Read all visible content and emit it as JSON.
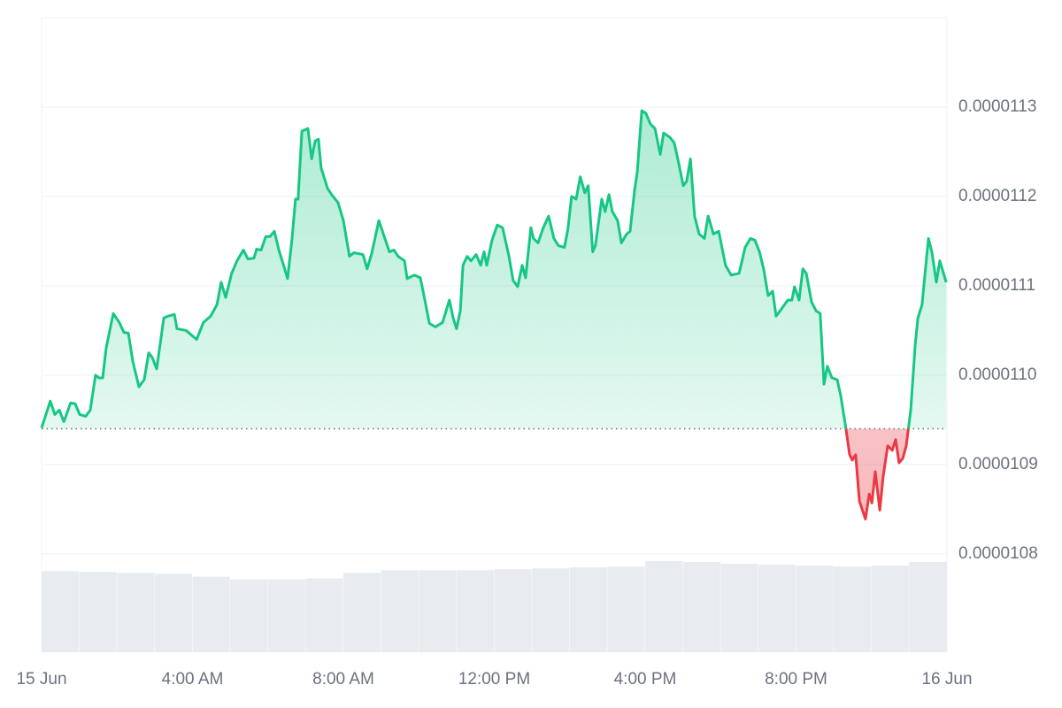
{
  "chart_data": {
    "type": "line",
    "x": [
      0,
      0.23,
      0.35,
      0.47,
      0.59,
      0.77,
      0.89,
      1.01,
      1.17,
      1.29,
      1.43,
      1.52,
      1.62,
      1.71,
      1.9,
      2.06,
      2.18,
      2.3,
      2.42,
      2.58,
      2.72,
      2.84,
      2.93,
      3.05,
      3.24,
      3.35,
      3.52,
      3.59,
      3.83,
      4.11,
      4.29,
      4.48,
      4.65,
      4.76,
      4.88,
      5.04,
      5.18,
      5.35,
      5.47,
      5.63,
      5.7,
      5.82,
      5.94,
      6.05,
      6.17,
      6.29,
      6.4,
      6.52,
      6.64,
      6.73,
      6.8,
      6.9,
      7.06,
      7.16,
      7.25,
      7.34,
      7.41,
      7.58,
      7.69,
      7.86,
      8.0,
      8.16,
      8.28,
      8.52,
      8.63,
      8.75,
      8.94,
      9.1,
      9.22,
      9.34,
      9.45,
      9.62,
      9.69,
      9.88,
      10.04,
      10.16,
      10.28,
      10.44,
      10.63,
      10.81,
      10.91,
      11.0,
      11.1,
      11.17,
      11.28,
      11.38,
      11.52,
      11.64,
      11.73,
      11.8,
      11.94,
      12.08,
      12.22,
      12.39,
      12.5,
      12.62,
      12.74,
      12.83,
      12.97,
      13.04,
      13.16,
      13.3,
      13.44,
      13.58,
      13.7,
      13.86,
      13.95,
      14.05,
      14.17,
      14.28,
      14.4,
      14.49,
      14.61,
      14.68,
      14.85,
      14.94,
      15.04,
      15.13,
      15.27,
      15.37,
      15.51,
      15.6,
      15.72,
      15.79,
      15.91,
      16.02,
      16.14,
      16.26,
      16.4,
      16.49,
      16.66,
      16.77,
      16.89,
      17.01,
      17.1,
      17.2,
      17.31,
      17.43,
      17.57,
      17.67,
      17.81,
      17.95,
      18.13,
      18.28,
      18.49,
      18.65,
      18.79,
      18.91,
      19.03,
      19.14,
      19.26,
      19.38,
      19.47,
      19.61,
      19.78,
      19.89,
      19.96,
      20.08,
      20.18,
      20.27,
      20.41,
      20.53,
      20.64,
      20.74,
      20.83,
      20.95,
      21.09,
      21.18,
      21.32,
      21.42,
      21.49,
      21.58,
      21.68,
      21.84,
      21.94,
      22.01,
      22.1,
      22.22,
      22.31,
      22.43,
      22.55,
      22.64,
      22.73,
      22.83,
      22.92,
      23.04,
      23.16,
      23.23,
      23.34,
      23.44,
      23.51,
      23.6,
      23.72,
      23.81,
      23.98
    ],
    "values": [
      1.0941e-05,
      1.0971e-05,
      1.0956e-05,
      1.0961e-05,
      1.0948e-05,
      1.0969e-05,
      1.0968e-05,
      1.0956e-05,
      1.0954e-05,
      1.0961e-05,
      1.1e-05,
      1.0997e-05,
      1.0997e-05,
      1.103e-05,
      1.1069e-05,
      1.1059e-05,
      1.1048e-05,
      1.1047e-05,
      1.1015e-05,
      1.0987e-05,
      1.0995e-05,
      1.1025e-05,
      1.102e-05,
      1.1007e-05,
      1.1064e-05,
      1.1066e-05,
      1.1068e-05,
      1.1052e-05,
      1.105e-05,
      1.104e-05,
      1.1059e-05,
      1.1066e-05,
      1.1079e-05,
      1.1104e-05,
      1.1087e-05,
      1.1114e-05,
      1.1128e-05,
      1.114e-05,
      1.113e-05,
      1.1131e-05,
      1.1141e-05,
      1.114e-05,
      1.1155e-05,
      1.1155e-05,
      1.1161e-05,
      1.114e-05,
      1.1125e-05,
      1.1108e-05,
      1.1153e-05,
      1.1197e-05,
      1.1197e-05,
      1.1273e-05,
      1.1276e-05,
      1.1242e-05,
      1.1262e-05,
      1.1264e-05,
      1.1232e-05,
      1.1209e-05,
      1.1202e-05,
      1.1193e-05,
      1.1173e-05,
      1.1133e-05,
      1.1137e-05,
      1.1135e-05,
      1.1119e-05,
      1.1136e-05,
      1.1173e-05,
      1.1153e-05,
      1.1138e-05,
      1.114e-05,
      1.1133e-05,
      1.1128e-05,
      1.1108e-05,
      1.1112e-05,
      1.1109e-05,
      1.1084e-05,
      1.1058e-05,
      1.1054e-05,
      1.1059e-05,
      1.1084e-05,
      1.1064e-05,
      1.1052e-05,
      1.1072e-05,
      1.1123e-05,
      1.1133e-05,
      1.1128e-05,
      1.1135e-05,
      1.1123e-05,
      1.1138e-05,
      1.1123e-05,
      1.1151e-05,
      1.1168e-05,
      1.1165e-05,
      1.1133e-05,
      1.1106e-05,
      1.1099e-05,
      1.1123e-05,
      1.1109e-05,
      1.1165e-05,
      1.1153e-05,
      1.1148e-05,
      1.1165e-05,
      1.1178e-05,
      1.1153e-05,
      1.1145e-05,
      1.1143e-05,
      1.1163e-05,
      1.12e-05,
      1.1197e-05,
      1.1222e-05,
      1.1204e-05,
      1.1212e-05,
      1.1138e-05,
      1.1145e-05,
      1.1197e-05,
      1.1183e-05,
      1.1202e-05,
      1.1183e-05,
      1.1173e-05,
      1.1148e-05,
      1.1158e-05,
      1.1161e-05,
      1.1207e-05,
      1.1227e-05,
      1.1296e-05,
      1.1293e-05,
      1.1281e-05,
      1.1276e-05,
      1.1247e-05,
      1.1271e-05,
      1.1266e-05,
      1.126e-05,
      1.1237e-05,
      1.1212e-05,
      1.1217e-05,
      1.1242e-05,
      1.1178e-05,
      1.1158e-05,
      1.1153e-05,
      1.1178e-05,
      1.1158e-05,
      1.1161e-05,
      1.1123e-05,
      1.1112e-05,
      1.1114e-05,
      1.1143e-05,
      1.1153e-05,
      1.1151e-05,
      1.1138e-05,
      1.1119e-05,
      1.1089e-05,
      1.1094e-05,
      1.1066e-05,
      1.1074e-05,
      1.1084e-05,
      1.1084e-05,
      1.1099e-05,
      1.1084e-05,
      1.1119e-05,
      1.1114e-05,
      1.1082e-05,
      1.1072e-05,
      1.1069e-05,
      1.099e-05,
      1.101e-05,
      1.0997e-05,
      1.0995e-05,
      1.0978e-05,
      1.0941e-05,
      1.0911e-05,
      1.0905e-05,
      1.0911e-05,
      1.0859e-05,
      1.0839e-05,
      1.0867e-05,
      1.0857e-05,
      1.0892e-05,
      1.0849e-05,
      1.0887e-05,
      1.0921e-05,
      1.0916e-05,
      1.0928e-05,
      1.0902e-05,
      1.0907e-05,
      1.0921e-05,
      1.0961e-05,
      1.1035e-05,
      1.1064e-05,
      1.1079e-05,
      1.1123e-05,
      1.1153e-05,
      1.1138e-05,
      1.1104e-05,
      1.1128e-05,
      1.1104e-05
    ],
    "baseline": 1.094e-05,
    "up_color": "#16c784",
    "down_color": "#ea3943",
    "xlim": [
      0,
      24
    ],
    "xticks": [
      {
        "value": 0,
        "label": "15 Jun"
      },
      {
        "value": 4,
        "label": "4:00 AM"
      },
      {
        "value": 8,
        "label": "8:00 AM"
      },
      {
        "value": 12,
        "label": "12:00 PM"
      },
      {
        "value": 16,
        "label": "4:00 PM"
      },
      {
        "value": 20,
        "label": "8:00 PM"
      },
      {
        "value": 24,
        "label": "16 Jun"
      }
    ],
    "ylim": [
      1.069e-05,
      1.14e-05
    ],
    "yticks": [
      1.08e-05,
      1.09e-05,
      {
        "value": 1.1e-05,
        "label": "0.0000110"
      },
      1.11e-05,
      1.12e-05,
      1.13e-05
    ],
    "grid": true,
    "volume": {
      "color": "#e8ebef",
      "x": [
        0,
        1,
        2,
        3,
        4,
        5,
        6,
        7,
        8,
        9,
        10,
        11,
        12,
        13,
        14,
        15,
        16,
        17,
        18,
        19,
        20,
        21,
        22,
        23
      ],
      "values": [
        89,
        88,
        87,
        86,
        83,
        80,
        80,
        81,
        87,
        90,
        90,
        90,
        91,
        92,
        93,
        94,
        100,
        99,
        97,
        96,
        95,
        94,
        95,
        99
      ]
    }
  }
}
